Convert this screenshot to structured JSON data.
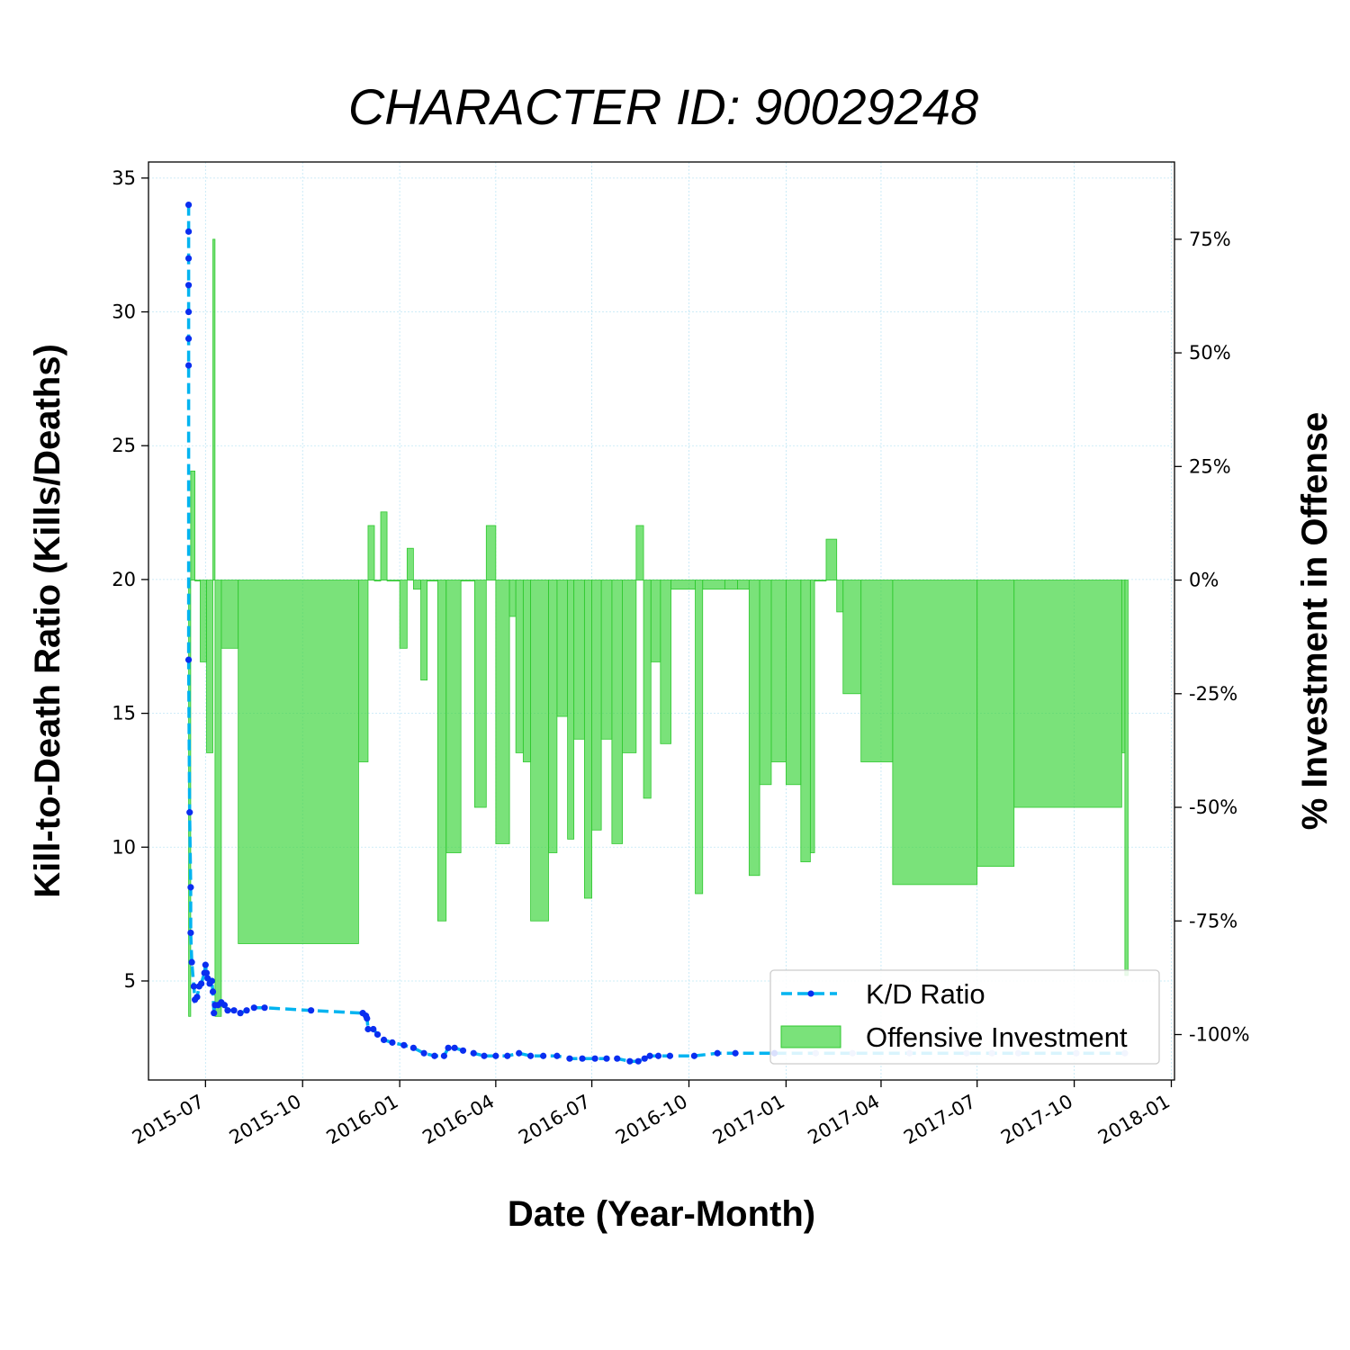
{
  "chart_data": {
    "type": "line",
    "title": "CHARACTER ID: 90029248",
    "xlabel": "Date (Year-Month)",
    "ylabel": "Kill-to-Death Ratio (Kills/Deaths)",
    "y2label": "% Investment in Offense",
    "xlim": [
      "2015-05-08",
      "2018-01-04"
    ],
    "ylim": [
      1.3,
      35.6
    ],
    "y2lim": [
      -110,
      92
    ],
    "x_ticks": [
      "2015-07",
      "2015-10",
      "2016-01",
      "2016-04",
      "2016-07",
      "2016-10",
      "2017-01",
      "2017-04",
      "2017-07",
      "2017-10",
      "2018-01"
    ],
    "y_ticks": [
      5,
      10,
      15,
      20,
      25,
      30,
      35
    ],
    "y2_ticks": [
      {
        "value": 75,
        "label": "75%"
      },
      {
        "value": 50,
        "label": "50%"
      },
      {
        "value": 25,
        "label": "25%"
      },
      {
        "value": 0,
        "label": "0%"
      },
      {
        "value": -25,
        "label": "-25%"
      },
      {
        "value": -50,
        "label": "-50%"
      },
      {
        "value": -75,
        "label": "-75%"
      },
      {
        "value": -100,
        "label": "-100%"
      }
    ],
    "grid": true,
    "legend_position": "bottom-right",
    "legend": [
      "K/D Ratio",
      "Offensive Investment"
    ],
    "colors": {
      "kd_line": "#00b4f0",
      "kd_marker": "#0a2ef0",
      "kd_marker_faded": "#aab8f4",
      "investment_fill": "#3bd43b",
      "investment_edge": "#2fc82f",
      "grid": "#bfe6f5"
    },
    "series": [
      {
        "name": "K/D Ratio",
        "axis": "left",
        "points": [
          [
            "2015-06-15",
            34.0
          ],
          [
            "2015-06-15",
            33.0
          ],
          [
            "2015-06-15",
            32.0
          ],
          [
            "2015-06-15",
            31.0
          ],
          [
            "2015-06-15",
            30.0
          ],
          [
            "2015-06-15",
            29.0
          ],
          [
            "2015-06-15",
            28.0
          ],
          [
            "2015-06-15",
            17.0
          ],
          [
            "2015-06-16",
            11.3
          ],
          [
            "2015-06-17",
            8.5
          ],
          [
            "2015-06-17",
            6.8
          ],
          [
            "2015-06-18",
            5.7
          ],
          [
            "2015-06-20",
            4.8
          ],
          [
            "2015-06-21",
            4.3
          ],
          [
            "2015-06-23",
            4.4
          ],
          [
            "2015-06-25",
            4.8
          ],
          [
            "2015-06-27",
            4.9
          ],
          [
            "2015-06-30",
            5.3
          ],
          [
            "2015-07-01",
            5.6
          ],
          [
            "2015-07-02",
            5.3
          ],
          [
            "2015-07-03",
            5.1
          ],
          [
            "2015-07-05",
            4.9
          ],
          [
            "2015-07-07",
            5.0
          ],
          [
            "2015-07-08",
            4.6
          ],
          [
            "2015-07-09",
            3.8
          ],
          [
            "2015-07-10",
            4.1
          ],
          [
            "2015-07-13",
            4.1
          ],
          [
            "2015-07-16",
            4.2
          ],
          [
            "2015-07-19",
            4.1
          ],
          [
            "2015-07-22",
            3.9
          ],
          [
            "2015-07-28",
            3.9
          ],
          [
            "2015-08-03",
            3.8
          ],
          [
            "2015-08-09",
            3.9
          ],
          [
            "2015-08-16",
            4.0
          ],
          [
            "2015-08-26",
            4.0
          ],
          [
            "2015-10-09",
            3.9
          ],
          [
            "2015-11-27",
            3.8
          ],
          [
            "2015-11-30",
            3.7
          ],
          [
            "2015-12-01",
            3.6
          ],
          [
            "2015-12-02",
            3.2
          ],
          [
            "2015-12-07",
            3.2
          ],
          [
            "2015-12-11",
            3.0
          ],
          [
            "2015-12-17",
            2.8
          ],
          [
            "2015-12-25",
            2.7
          ],
          [
            "2016-01-05",
            2.6
          ],
          [
            "2016-01-14",
            2.5
          ],
          [
            "2016-01-24",
            2.3
          ],
          [
            "2016-02-03",
            2.2
          ],
          [
            "2016-02-12",
            2.2
          ],
          [
            "2016-02-16",
            2.5
          ],
          [
            "2016-02-22",
            2.5
          ],
          [
            "2016-03-01",
            2.4
          ],
          [
            "2016-03-11",
            2.3
          ],
          [
            "2016-03-21",
            2.2
          ],
          [
            "2016-04-01",
            2.2
          ],
          [
            "2016-04-12",
            2.2
          ],
          [
            "2016-04-23",
            2.3
          ],
          [
            "2016-05-04",
            2.2
          ],
          [
            "2016-05-16",
            2.2
          ],
          [
            "2016-05-29",
            2.2
          ],
          [
            "2016-06-10",
            2.1
          ],
          [
            "2016-06-22",
            2.1
          ],
          [
            "2016-07-04",
            2.1
          ],
          [
            "2016-07-15",
            2.1
          ],
          [
            "2016-07-25",
            2.1
          ],
          [
            "2016-08-06",
            2.0
          ],
          [
            "2016-08-14",
            2.0
          ],
          [
            "2016-08-20",
            2.1
          ],
          [
            "2016-08-25",
            2.2
          ],
          [
            "2016-09-02",
            2.2
          ],
          [
            "2016-09-13",
            2.2
          ],
          [
            "2016-10-06",
            2.2
          ],
          [
            "2016-10-28",
            2.3
          ],
          [
            "2016-11-14",
            2.3
          ],
          [
            "2016-12-21",
            2.3
          ],
          [
            "2017-01-29",
            2.3
          ],
          [
            "2017-03-05",
            2.3
          ],
          [
            "2017-04-28",
            2.3
          ],
          [
            "2017-06-21",
            2.3
          ],
          [
            "2017-07-15",
            2.3
          ],
          [
            "2017-08-09",
            2.3
          ],
          [
            "2017-10-03",
            2.3
          ],
          [
            "2017-11-18",
            2.3
          ]
        ]
      },
      {
        "name": "Offensive Investment",
        "axis": "right",
        "steps": [
          [
            "2015-06-15",
            -96
          ],
          [
            "2015-06-17",
            24
          ],
          [
            "2015-06-21",
            0
          ],
          [
            "2015-06-26",
            -18
          ],
          [
            "2015-07-02",
            -38
          ],
          [
            "2015-07-08",
            75
          ],
          [
            "2015-07-10",
            -96
          ],
          [
            "2015-07-16",
            -15
          ],
          [
            "2015-08-01",
            -80
          ],
          [
            "2015-11-23",
            -40
          ],
          [
            "2015-12-02",
            12
          ],
          [
            "2015-12-08",
            0
          ],
          [
            "2015-12-14",
            15
          ],
          [
            "2015-12-20",
            0
          ],
          [
            "2016-01-01",
            -15
          ],
          [
            "2016-01-08",
            7
          ],
          [
            "2016-01-14",
            -2
          ],
          [
            "2016-01-21",
            -22
          ],
          [
            "2016-01-27",
            0
          ],
          [
            "2016-02-06",
            -75
          ],
          [
            "2016-02-14",
            -60
          ],
          [
            "2016-02-28",
            0
          ],
          [
            "2016-03-12",
            -50
          ],
          [
            "2016-03-23",
            12
          ],
          [
            "2016-04-01",
            -58
          ],
          [
            "2016-04-14",
            -8
          ],
          [
            "2016-04-20",
            -38
          ],
          [
            "2016-04-27",
            -40
          ],
          [
            "2016-05-04",
            -75
          ],
          [
            "2016-05-21",
            -60
          ],
          [
            "2016-05-29",
            -30
          ],
          [
            "2016-06-08",
            -57
          ],
          [
            "2016-06-14",
            -35
          ],
          [
            "2016-06-24",
            -70
          ],
          [
            "2016-07-01",
            -55
          ],
          [
            "2016-07-10",
            -35
          ],
          [
            "2016-07-20",
            -58
          ],
          [
            "2016-07-30",
            -38
          ],
          [
            "2016-08-12",
            12
          ],
          [
            "2016-08-19",
            -48
          ],
          [
            "2016-08-26",
            -18
          ],
          [
            "2016-09-04",
            -36
          ],
          [
            "2016-09-14",
            -2
          ],
          [
            "2016-10-07",
            -69
          ],
          [
            "2016-10-14",
            -2
          ],
          [
            "2016-11-04",
            -2
          ],
          [
            "2016-11-16",
            -2
          ],
          [
            "2016-11-27",
            -65
          ],
          [
            "2016-12-07",
            -45
          ],
          [
            "2016-12-18",
            -40
          ],
          [
            "2017-01-01",
            -45
          ],
          [
            "2017-01-15",
            -62
          ],
          [
            "2017-01-24",
            -60
          ],
          [
            "2017-01-28",
            0
          ],
          [
            "2017-02-08",
            9
          ],
          [
            "2017-02-18",
            -7
          ],
          [
            "2017-02-24",
            -25
          ],
          [
            "2017-03-13",
            -40
          ],
          [
            "2017-04-12",
            -67
          ],
          [
            "2017-07-01",
            -63
          ],
          [
            "2017-08-05",
            -50
          ],
          [
            "2017-11-15",
            -38
          ],
          [
            "2017-11-18",
            -87
          ]
        ],
        "end": "2017-11-21"
      }
    ]
  }
}
